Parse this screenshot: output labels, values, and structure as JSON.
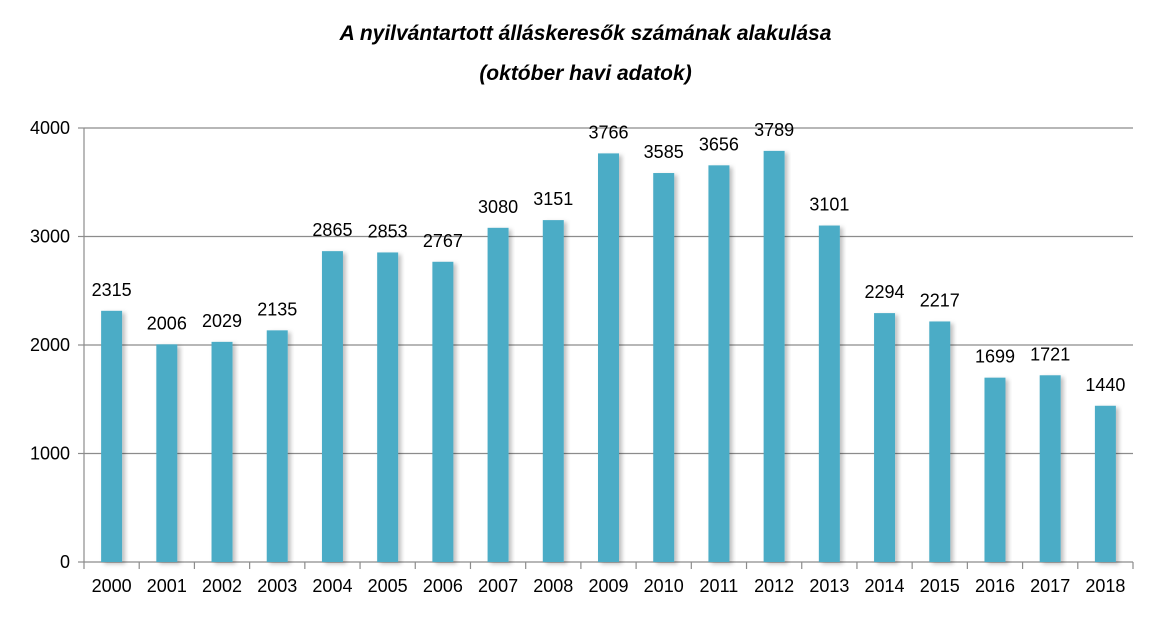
{
  "chart_data": {
    "type": "bar",
    "title": "A nyilvántartott álláskeresők számának alakulása",
    "subtitle": "(október havi adatok)",
    "categories": [
      "2000",
      "2001",
      "2002",
      "2003",
      "2004",
      "2005",
      "2006",
      "2007",
      "2008",
      "2009",
      "2010",
      "2011",
      "2012",
      "2013",
      "2014",
      "2015",
      "2016",
      "2017",
      "2018"
    ],
    "values": [
      2315,
      2006,
      2029,
      2135,
      2865,
      2853,
      2767,
      3080,
      3151,
      3766,
      3585,
      3656,
      3789,
      3101,
      2294,
      2217,
      1699,
      1721,
      1440
    ],
    "ylim": [
      0,
      4000
    ],
    "yticks": [
      0,
      1000,
      2000,
      3000,
      4000
    ],
    "grid": true,
    "bar_color": "#4bacc6",
    "data_labels": true
  }
}
